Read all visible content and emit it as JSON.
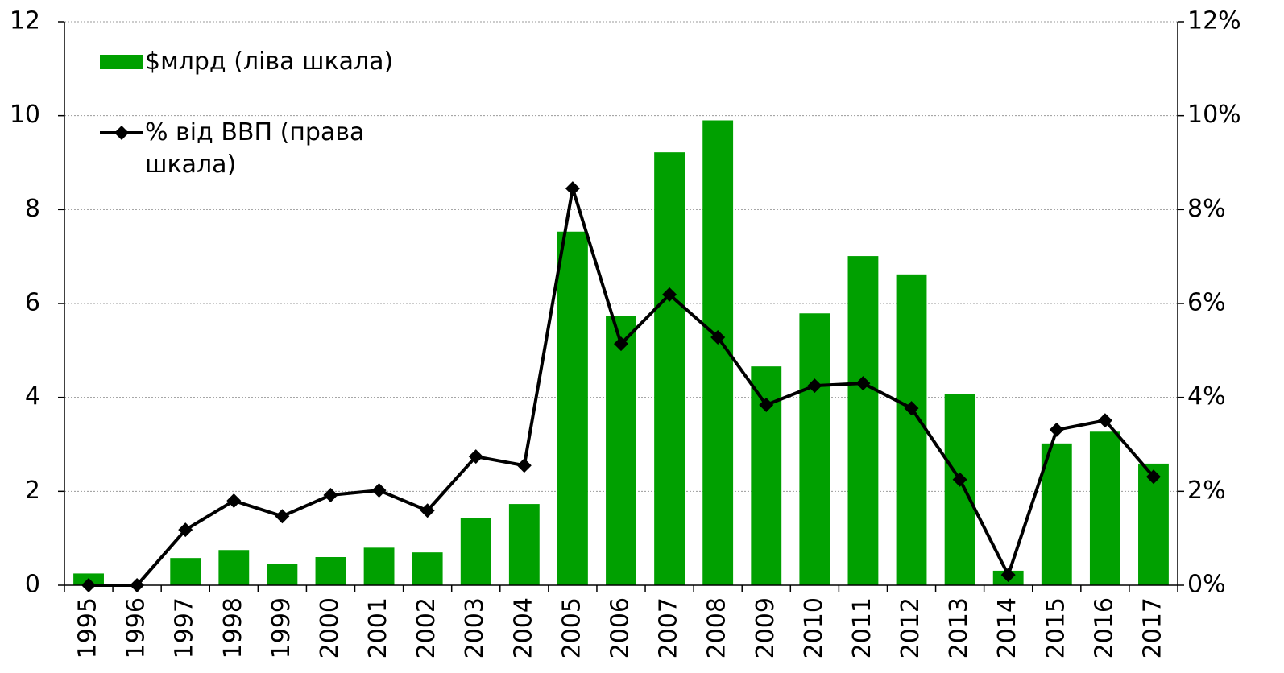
{
  "chart_data": {
    "type": "bar_line",
    "categories": [
      "1995",
      "1996",
      "1997",
      "1998",
      "1999",
      "2000",
      "2001",
      "2002",
      "2003",
      "2004",
      "2005",
      "2006",
      "2007",
      "2008",
      "2009",
      "2010",
      "2011",
      "2012",
      "2013",
      "2014",
      "2015",
      "2016",
      "2017"
    ],
    "series": [
      {
        "name": "$млрд (ліва шкала)",
        "type": "bar",
        "color": "#00a000",
        "axis": "y",
        "values": [
          0.25,
          0,
          0.58,
          0.75,
          0.46,
          0.6,
          0.8,
          0.7,
          1.44,
          1.73,
          7.53,
          5.74,
          9.22,
          9.9,
          4.66,
          5.79,
          7.01,
          6.62,
          4.08,
          0.31,
          3.02,
          3.27,
          2.59
        ]
      },
      {
        "name": "% від ВВП (права шкала)",
        "type": "line",
        "color": "#000000",
        "axis": "y2",
        "values": [
          0,
          0,
          1.18,
          1.8,
          1.47,
          1.92,
          2.02,
          1.59,
          2.74,
          2.55,
          8.45,
          5.14,
          6.19,
          5.28,
          3.84,
          4.25,
          4.3,
          3.77,
          2.25,
          0.22,
          3.31,
          3.51,
          2.31
        ]
      }
    ],
    "ylim": [
      0,
      12
    ],
    "yticks": [
      0,
      2,
      4,
      6,
      8,
      10,
      12
    ],
    "y2lim": [
      0,
      12
    ],
    "y2ticks": [
      {
        "value": 0,
        "label": "0%"
      },
      {
        "value": 2,
        "label": "2%"
      },
      {
        "value": 4,
        "label": "4%"
      },
      {
        "value": 6,
        "label": "6%"
      },
      {
        "value": 8,
        "label": "8%"
      },
      {
        "value": 10,
        "label": "10%"
      },
      {
        "value": 12,
        "label": "12%"
      }
    ],
    "grid": true
  }
}
